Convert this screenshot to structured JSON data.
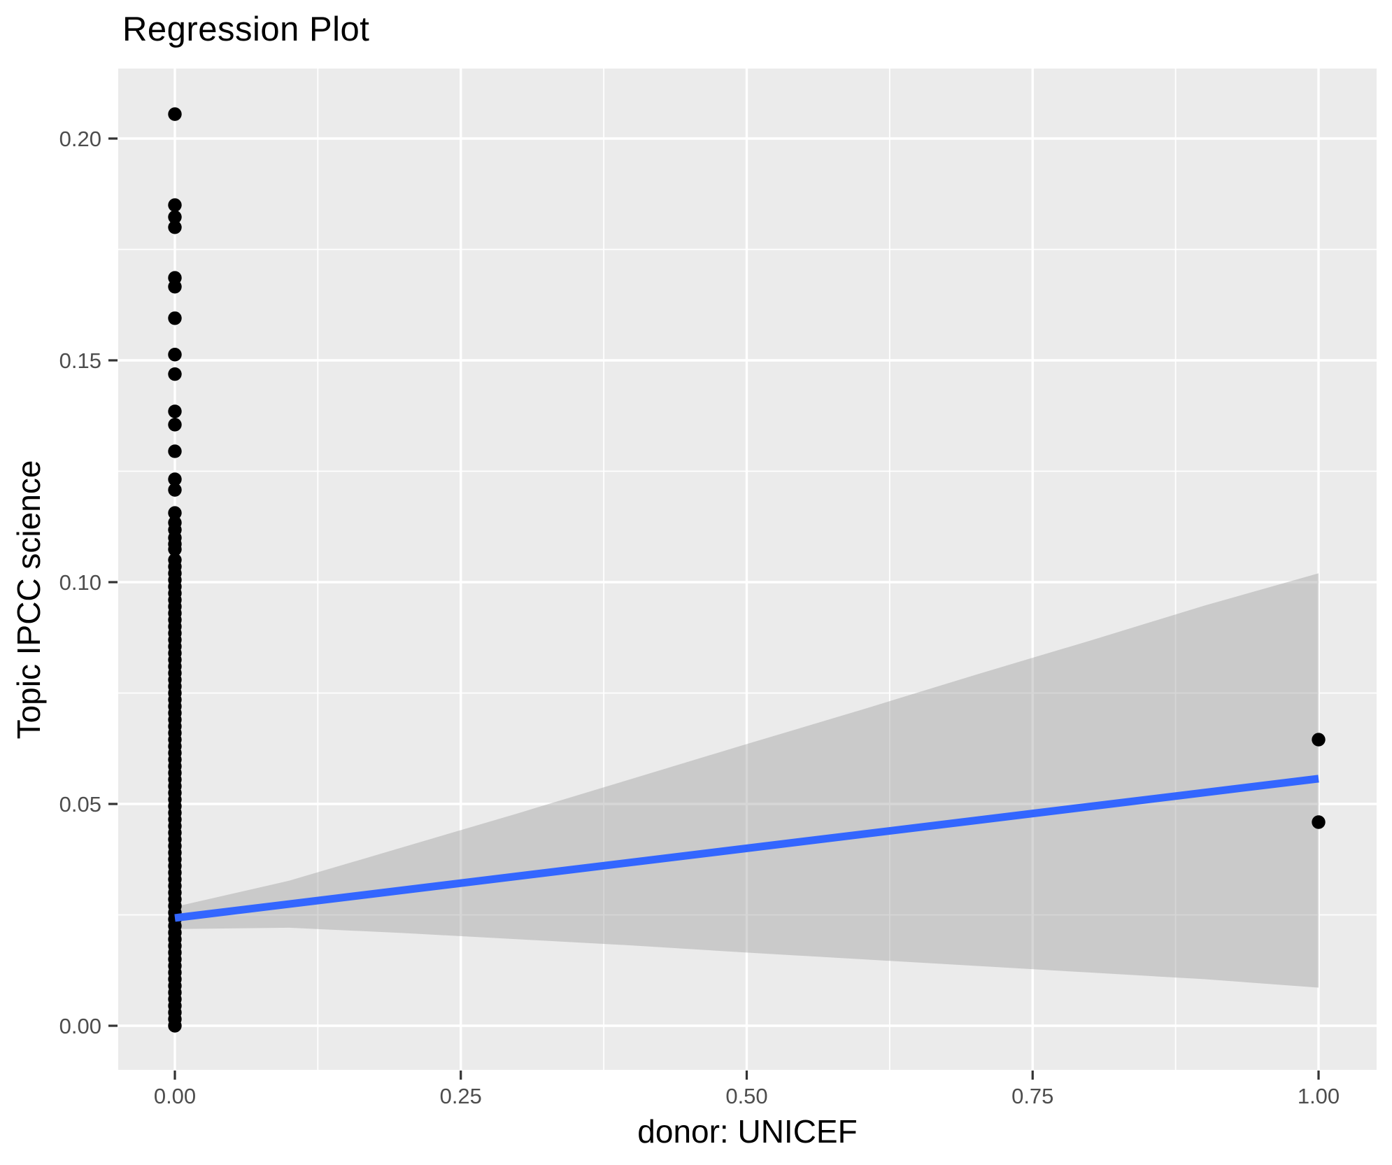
{
  "title": "Regression Plot",
  "style": {
    "background": "#FFFFFF",
    "panel_background": "#EBEBEB",
    "gridline_color": "#FFFFFF",
    "tick_mark_color": "#333333",
    "tick_label_color": "#4D4D4D",
    "title_color": "#000000",
    "point_color": "#000000",
    "line_color": "#3366FF",
    "ribbon_fill": "rgba(153,153,153,0.4)"
  },
  "chart_data": {
    "type": "scatter",
    "title": "Regression Plot",
    "xlabel": "donor: UNICEF",
    "ylabel": "Topic IPCC science",
    "xlim": [
      -0.05,
      1.05
    ],
    "ylim": [
      -0.0099,
      0.2158
    ],
    "grid": "on",
    "legend": "none",
    "x_ticks": [
      {
        "value": 0.0,
        "label": "0.00"
      },
      {
        "value": 0.25,
        "label": "0.25"
      },
      {
        "value": 0.5,
        "label": "0.50"
      },
      {
        "value": 0.75,
        "label": "0.75"
      },
      {
        "value": 1.0,
        "label": "1.00"
      }
    ],
    "y_ticks": [
      {
        "value": 0.0,
        "label": "0.00"
      },
      {
        "value": 0.05,
        "label": "0.05"
      },
      {
        "value": 0.1,
        "label": "0.10"
      },
      {
        "value": 0.15,
        "label": "0.15"
      },
      {
        "value": 0.2,
        "label": "0.20"
      }
    ],
    "x_minor_gridlines": [
      0.125,
      0.375,
      0.625,
      0.875
    ],
    "y_minor_gridlines": [
      0.025,
      0.075,
      0.125,
      0.175
    ],
    "series": [
      {
        "name": "observations at donor=0",
        "x": 0,
        "y": [
          0.2055,
          0.185,
          0.1823,
          0.18,
          0.1686,
          0.1666,
          0.1595,
          0.1513,
          0.1469,
          0.1385,
          0.1355,
          0.1295,
          0.1232,
          0.1208,
          0.1156,
          0.1134,
          0.1118,
          0.11,
          0.1086,
          0.1074,
          0.105,
          0.1035,
          0.102,
          0.1005,
          0.099,
          0.0975,
          0.096,
          0.0945,
          0.093,
          0.0915,
          0.09,
          0.0885,
          0.087,
          0.0855,
          0.084,
          0.0825,
          0.081,
          0.0795,
          0.078,
          0.0765,
          0.075,
          0.0735,
          0.072,
          0.0705,
          0.069,
          0.0675,
          0.066,
          0.0645,
          0.063,
          0.0615,
          0.06,
          0.0585,
          0.057,
          0.0555,
          0.054,
          0.0525,
          0.051,
          0.0495,
          0.048,
          0.0465,
          0.045,
          0.0435,
          0.042,
          0.0405,
          0.039,
          0.0375,
          0.036,
          0.0345,
          0.033,
          0.0315,
          0.03,
          0.0285,
          0.027,
          0.0255,
          0.024,
          0.0225,
          0.021,
          0.0195,
          0.018,
          0.0165,
          0.015,
          0.0135,
          0.012,
          0.0105,
          0.009,
          0.0075,
          0.006,
          0.0045,
          0.003,
          0.0015,
          0.0
        ]
      },
      {
        "name": "observations at donor=1",
        "x": 1,
        "y": [
          0.0645,
          0.0459
        ]
      }
    ],
    "regression_line": {
      "x": [
        0,
        1
      ],
      "y": [
        0.0243,
        0.0557
      ]
    },
    "confidence_band": {
      "x": [
        0.0,
        0.1,
        0.2,
        0.3,
        0.4,
        0.5,
        0.6,
        0.7,
        0.8,
        0.9,
        1.0
      ],
      "upper": [
        0.0268,
        0.0327,
        0.0403,
        0.0479,
        0.0557,
        0.0635,
        0.0712,
        0.0791,
        0.0868,
        0.0947,
        0.102
      ],
      "lower": [
        0.0218,
        0.0221,
        0.0209,
        0.0195,
        0.0181,
        0.0165,
        0.015,
        0.0135,
        0.012,
        0.0105,
        0.0086
      ]
    }
  }
}
